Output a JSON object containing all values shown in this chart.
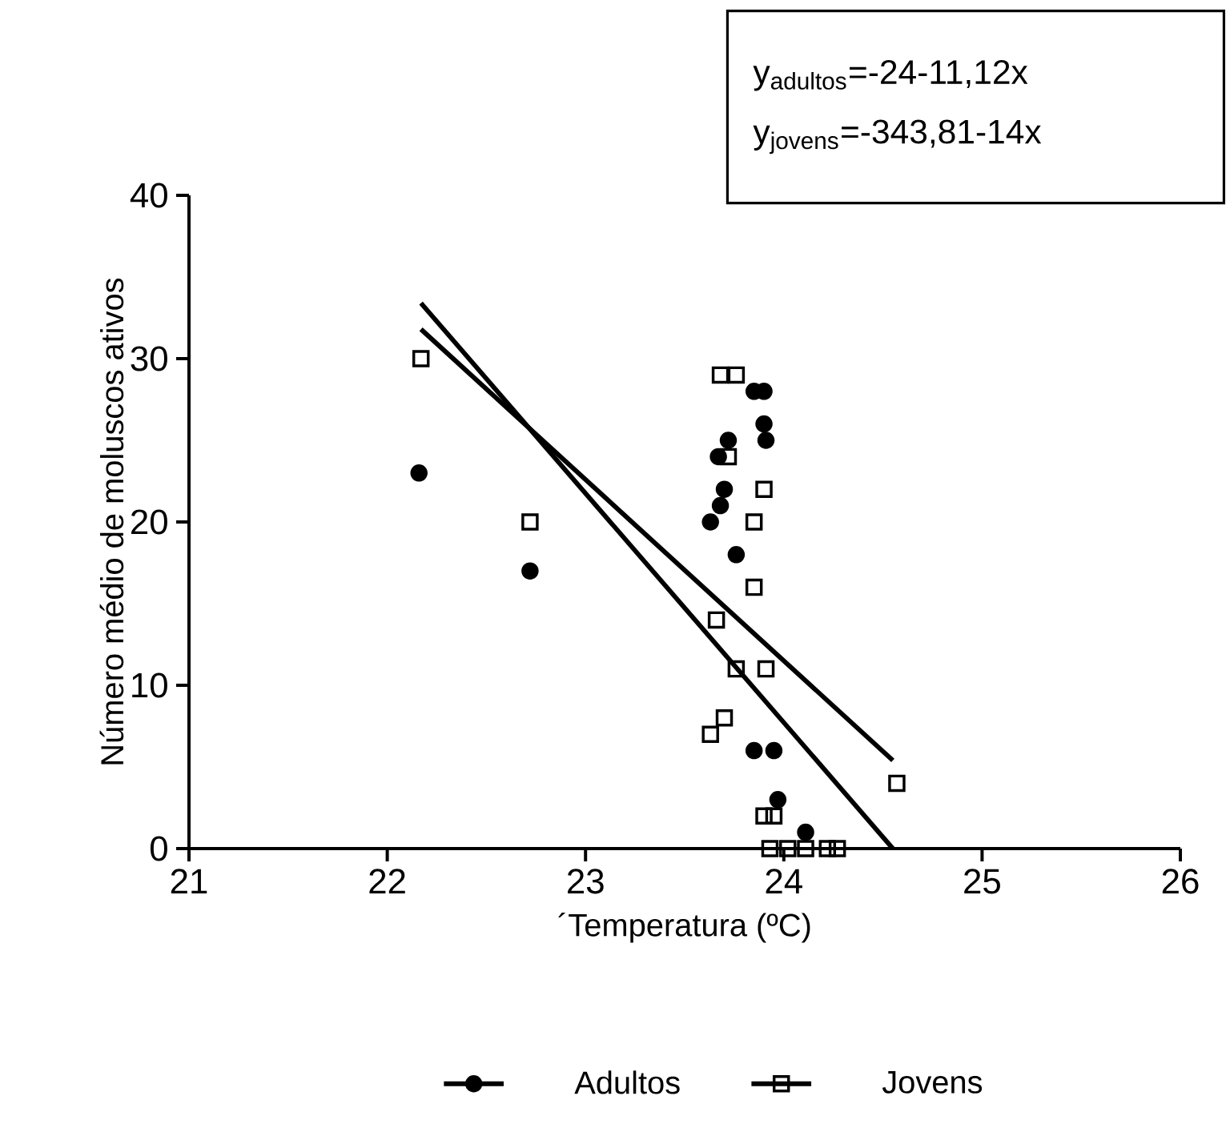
{
  "chart_data": {
    "type": "scatter",
    "xlabel": "´Temperatura (ºC)",
    "ylabel": "Número médio de moluscos ativos",
    "annotations": [
      "y$_{adultos}$=-24-11,12x",
      "y$_{jovens}$=-343,81-14x"
    ],
    "xlim": [
      21,
      26
    ],
    "xticks": [
      21,
      22,
      23,
      24,
      25,
      26
    ],
    "ylim": [
      0,
      40
    ],
    "yticks": [
      0,
      10,
      20,
      30,
      40
    ],
    "grid": false,
    "legend": "bottom",
    "series": [
      {
        "name": "Adultos",
        "type": "scatter",
        "marker": "circle",
        "color": "#000000",
        "x": [
          22.16,
          22.72,
          23.72,
          23.67,
          23.7,
          23.68,
          23.63,
          23.76,
          23.85,
          23.9,
          23.9,
          23.91,
          23.85,
          23.95,
          23.97,
          24.11
        ],
        "values": [
          23,
          17,
          25,
          24,
          22,
          21,
          20,
          18,
          28,
          28,
          26,
          25,
          6,
          6,
          3,
          1
        ]
      },
      {
        "name": "Jovens",
        "type": "scatter",
        "marker": "square",
        "color": "#000000",
        "x": [
          22.17,
          22.72,
          23.68,
          23.72,
          23.9,
          23.85,
          23.85,
          23.66,
          23.76,
          23.91,
          23.7,
          23.63,
          23.9,
          23.95,
          24.11,
          23.76,
          24.57,
          23.93,
          24.02,
          24.22,
          24.27
        ],
        "values": [
          30,
          20,
          29,
          24,
          22,
          20,
          16,
          14,
          11,
          11,
          8,
          7,
          2,
          2,
          0,
          29,
          4,
          0,
          0,
          0,
          0
        ]
      },
      {
        "type": "line",
        "marker": "none",
        "color": "#000000",
        "x": [
          22.17,
          24.55
        ],
        "values": [
          33.4,
          0
        ]
      },
      {
        "type": "line",
        "marker": "none",
        "color": "#000000",
        "x": [
          22.17,
          24.55
        ],
        "values": [
          31.8,
          5.4
        ]
      }
    ]
  }
}
